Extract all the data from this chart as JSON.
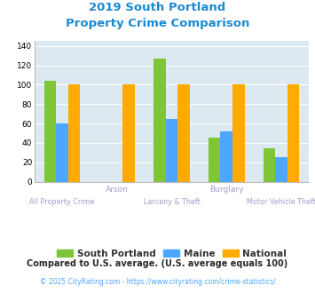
{
  "title_line1": "2019 South Portland",
  "title_line2": "Property Crime Comparison",
  "title_color": "#1a8ad4",
  "categories": [
    "All Property Crime",
    "Arson",
    "Larceny & Theft",
    "Burglary",
    "Motor Vehicle Theft"
  ],
  "south_portland": [
    104,
    0,
    127,
    45,
    34
  ],
  "maine": [
    60,
    0,
    65,
    52,
    25
  ],
  "national": [
    100,
    100,
    100,
    100,
    100
  ],
  "bar_colors": {
    "south_portland": "#7ec636",
    "maine": "#4da6ff",
    "national": "#ffaa00"
  },
  "ylim": [
    0,
    145
  ],
  "yticks": [
    0,
    20,
    40,
    60,
    80,
    100,
    120,
    140
  ],
  "legend_labels": [
    "South Portland",
    "Maine",
    "National"
  ],
  "footnote1": "Compared to U.S. average. (U.S. average equals 100)",
  "footnote2": "© 2025 CityRating.com - https://www.cityrating.com/crime-statistics/",
  "footnote1_color": "#2a2a2a",
  "footnote2_color": "#4da6ff",
  "plot_bg_color": "#dce9f0",
  "bar_width": 0.22,
  "row1_labels": [
    "",
    "Arson",
    "",
    "Burglary",
    ""
  ],
  "row2_labels": [
    "All Property Crime",
    "",
    "Larceny & Theft",
    "",
    "Motor Vehicle Theft"
  ],
  "label_color": "#aa99cc"
}
